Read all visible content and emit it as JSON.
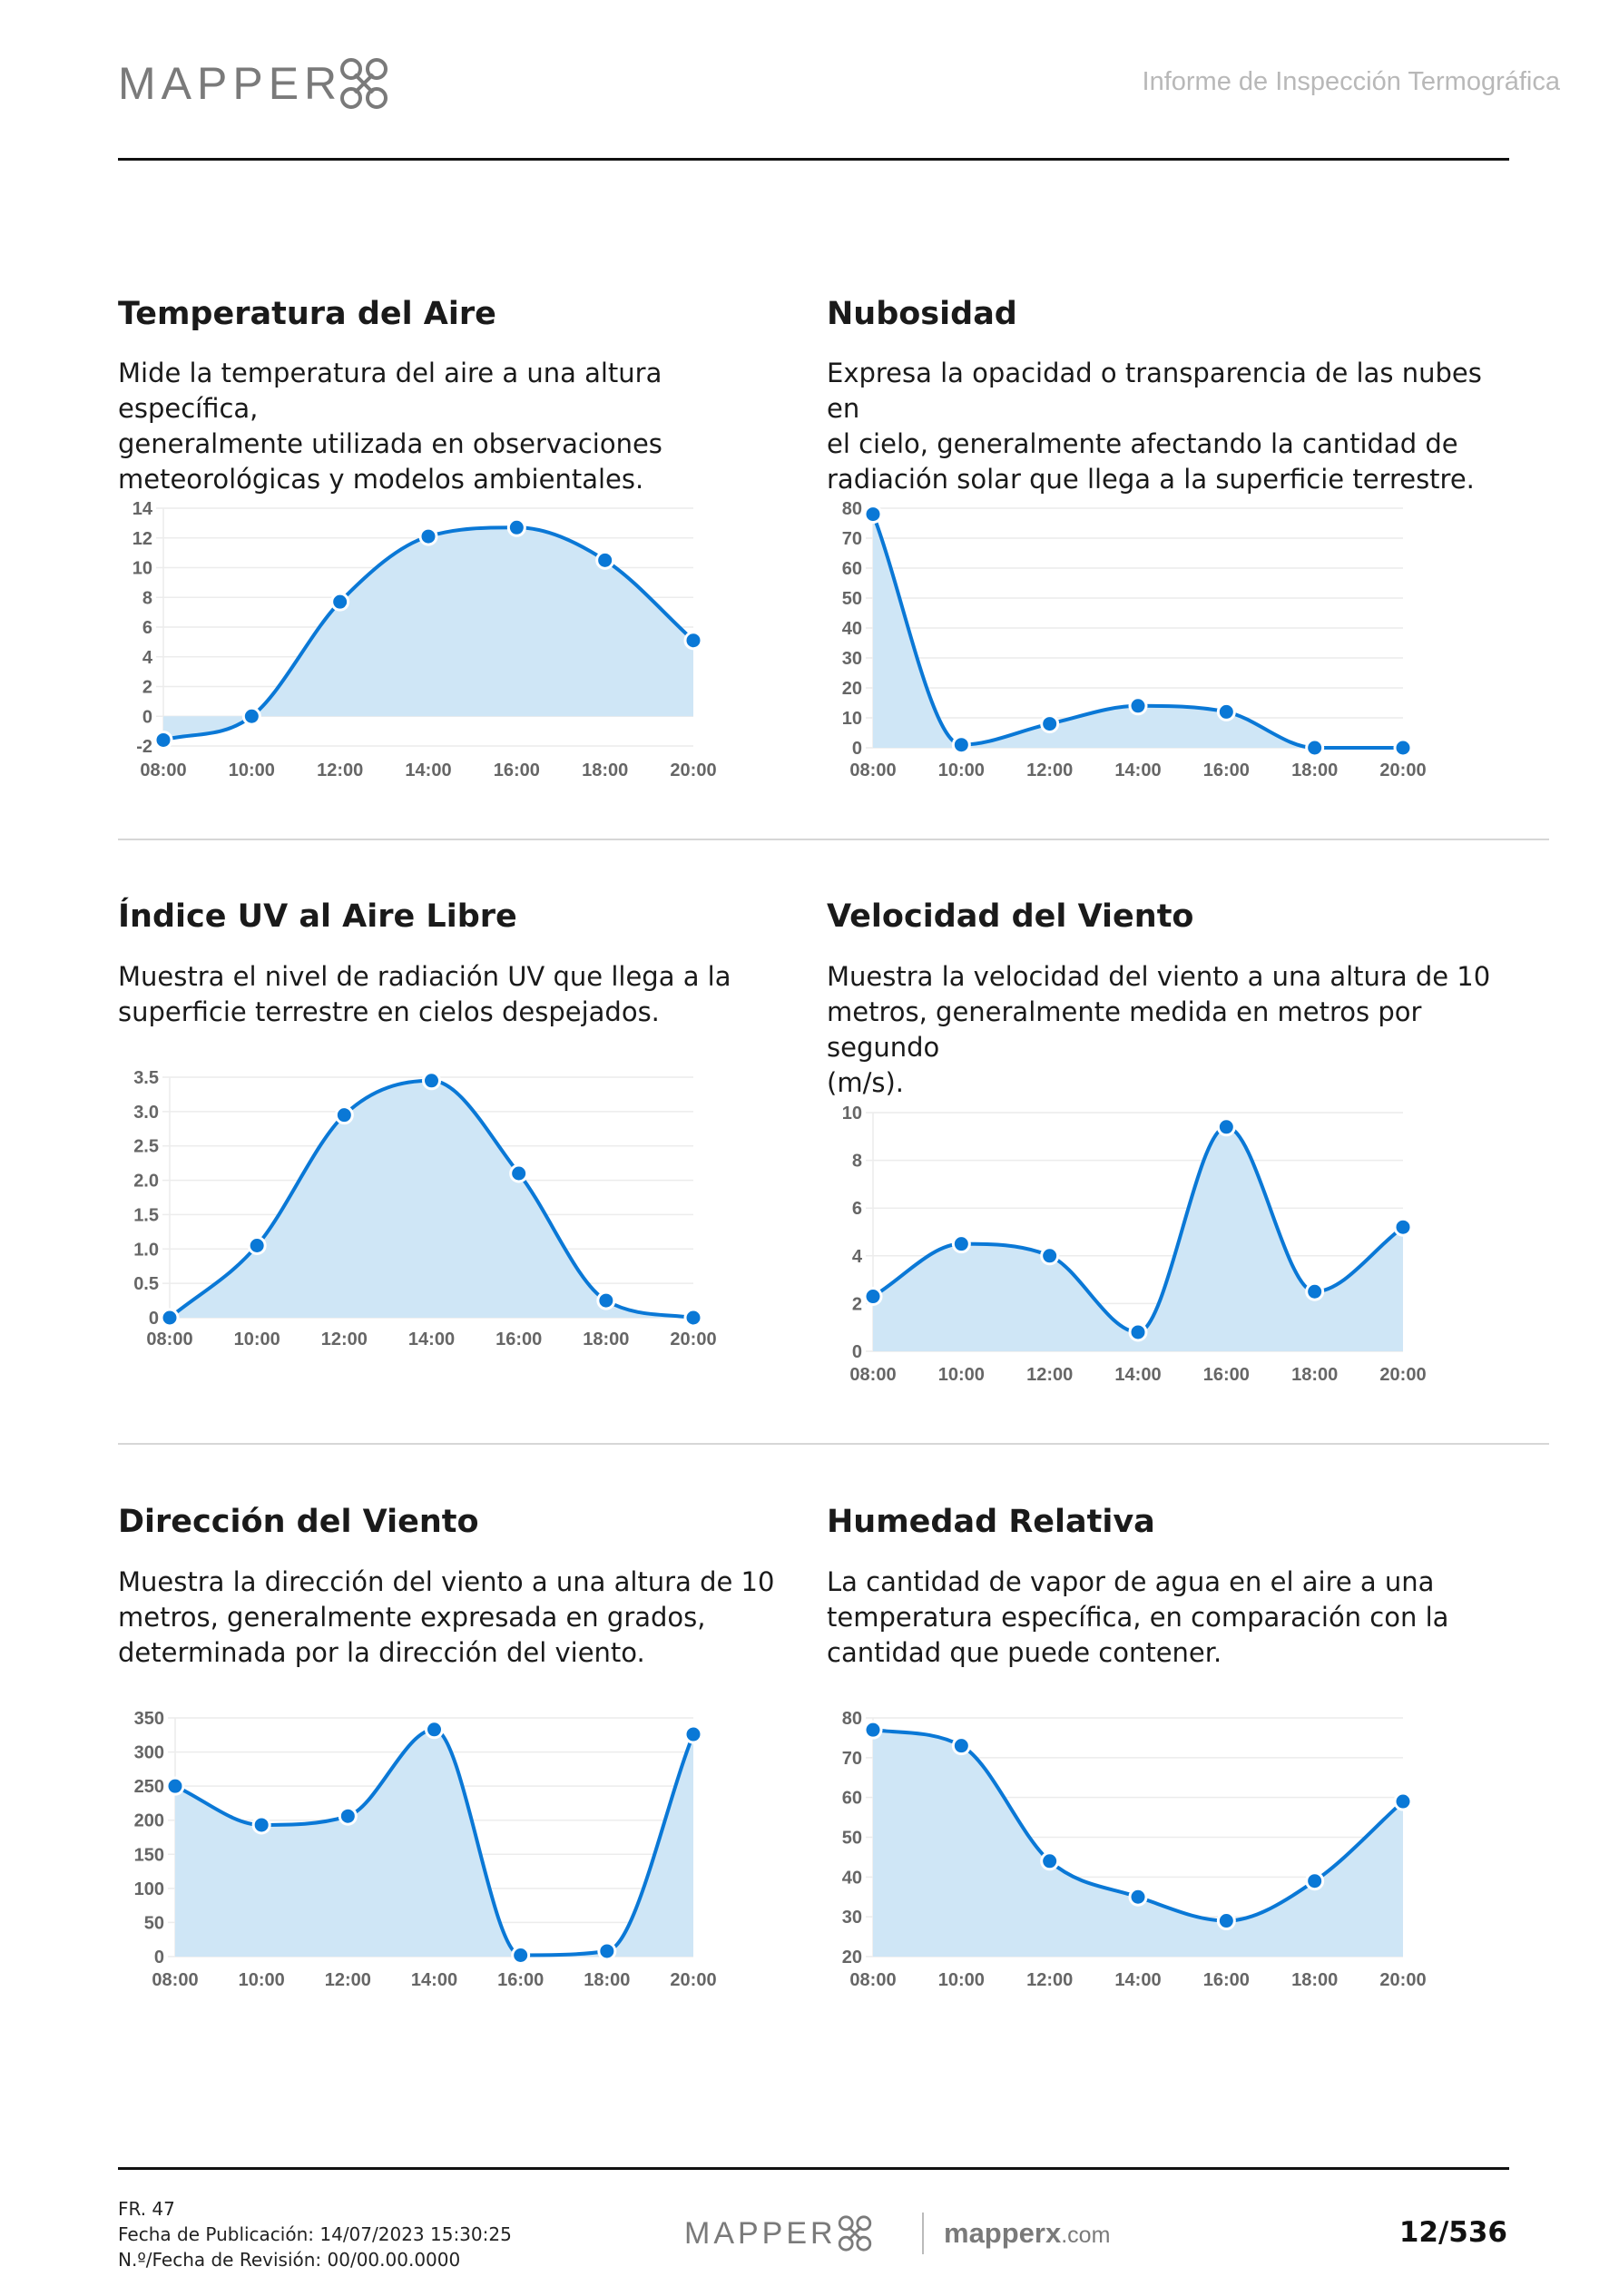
{
  "header": {
    "logo_text": "MAPPER",
    "title": "Informe de Inspección Termográfica"
  },
  "sections": [
    {
      "title": "Temperatura del Aire",
      "desc": [
        "Mide la temperatura del aire a una altura específica,",
        "generalmente utilizada en observaciones",
        "meteorológicas y modelos ambientales."
      ]
    },
    {
      "title": "Nubosidad",
      "desc": [
        "Expresa la opacidad o transparencia de las nubes en",
        "el cielo, generalmente afectando la cantidad de",
        "radiación solar que llega a la superficie terrestre."
      ]
    },
    {
      "title": "Índice UV al Aire Libre",
      "desc": [
        "Muestra el nivel de radiación UV que llega a la",
        "superficie terrestre en cielos despejados."
      ]
    },
    {
      "title": "Velocidad del Viento",
      "desc": [
        "Muestra la velocidad del viento a una altura de 10",
        "metros, generalmente medida en metros por segundo",
        "(m/s)."
      ]
    },
    {
      "title": "Dirección del Viento",
      "desc": [
        "Muestra la dirección del viento a una altura de 10",
        "metros, generalmente expresada en grados,",
        "determinada por la dirección del viento."
      ]
    },
    {
      "title": "Humedad Relativa",
      "desc": [
        "La cantidad de vapor de agua en el aire a una",
        "temperatura específica, en comparación con la",
        "cantidad que puede contener."
      ]
    }
  ],
  "colors": {
    "line": "#0a78d6",
    "fill": "#cfe6f6",
    "grid": "#ececec"
  },
  "chart_data": [
    {
      "type": "area",
      "title": "Temperatura del Aire",
      "categories": [
        "08:00",
        "10:00",
        "12:00",
        "14:00",
        "16:00",
        "18:00",
        "20:00"
      ],
      "values": [
        -1.6,
        0,
        7.7,
        12.1,
        12.7,
        10.5,
        5.1
      ],
      "ylim": [
        -2,
        14
      ],
      "yticks": [
        "-2",
        "0",
        "2",
        "4",
        "6",
        "8",
        "10",
        "12",
        "14"
      ],
      "grid": true
    },
    {
      "type": "area",
      "title": "Nubosidad",
      "categories": [
        "08:00",
        "10:00",
        "12:00",
        "14:00",
        "16:00",
        "18:00",
        "20:00"
      ],
      "values": [
        78,
        1,
        8,
        14,
        12,
        0,
        0
      ],
      "ylim": [
        0,
        80
      ],
      "yticks": [
        "0",
        "10",
        "20",
        "30",
        "40",
        "50",
        "60",
        "70",
        "80"
      ],
      "grid": true
    },
    {
      "type": "area",
      "title": "Índice UV al Aire Libre",
      "categories": [
        "08:00",
        "10:00",
        "12:00",
        "14:00",
        "16:00",
        "18:00",
        "20:00"
      ],
      "values": [
        0,
        1.05,
        2.95,
        3.45,
        2.1,
        0.25,
        0
      ],
      "ylim": [
        0,
        3.5
      ],
      "yticks": [
        "0",
        "0.5",
        "1.0",
        "1.5",
        "2.0",
        "2.5",
        "3.0",
        "3.5"
      ],
      "grid": true
    },
    {
      "type": "area",
      "title": "Velocidad del Viento",
      "categories": [
        "08:00",
        "10:00",
        "12:00",
        "14:00",
        "16:00",
        "18:00",
        "20:00"
      ],
      "values": [
        2.3,
        4.5,
        4.0,
        0.8,
        9.4,
        2.5,
        5.2
      ],
      "ylim": [
        0,
        10
      ],
      "yticks": [
        "0",
        "2",
        "4",
        "6",
        "8",
        "10"
      ],
      "grid": true
    },
    {
      "type": "area",
      "title": "Dirección del Viento",
      "categories": [
        "08:00",
        "10:00",
        "12:00",
        "14:00",
        "16:00",
        "18:00",
        "20:00"
      ],
      "values": [
        250,
        193,
        206,
        333,
        2,
        8,
        326
      ],
      "ylim": [
        0,
        350
      ],
      "yticks": [
        "0",
        "50",
        "100",
        "150",
        "200",
        "250",
        "300",
        "350"
      ],
      "grid": true
    },
    {
      "type": "area",
      "title": "Humedad Relativa",
      "categories": [
        "08:00",
        "10:00",
        "12:00",
        "14:00",
        "16:00",
        "18:00",
        "20:00"
      ],
      "values": [
        77,
        73,
        44,
        35,
        29,
        39,
        59
      ],
      "ylim": [
        20,
        80
      ],
      "yticks": [
        "20",
        "30",
        "40",
        "50",
        "60",
        "70",
        "80"
      ],
      "grid": true
    }
  ],
  "footer": {
    "line1": "FR. 47",
    "line2": "Fecha de Publicación: 14/07/2023 15:30:25",
    "line3": "N.º/Fecha de Revisión: 00/00.00.0000",
    "logo_text": "MAPPER",
    "site_name": "mapperx",
    "site_tld": ".com",
    "page": "12/536"
  }
}
